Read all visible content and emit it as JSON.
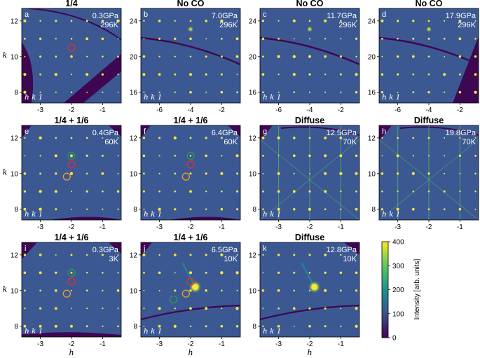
{
  "chart_data": [
    {
      "type": "heatmap",
      "panel": "a",
      "title": "1/4",
      "pressure": "0.3GPa",
      "temperature": "296K",
      "plane": "h k 1",
      "xlabel": "",
      "ylabel": "k",
      "xlim": [
        -3.6,
        -0.4
      ],
      "ylim": [
        7.4,
        12.7
      ],
      "xticks": [
        "-3",
        "-2",
        "-1"
      ],
      "yticks": [
        "8",
        "10",
        "12"
      ],
      "circles": [
        {
          "h": -2,
          "k": 10.5,
          "color": "#e03030"
        }
      ]
    },
    {
      "type": "heatmap",
      "panel": "b",
      "title": "No CO",
      "pressure": "7.0GPa",
      "temperature": "296K",
      "plane": "h k 1",
      "xlabel": "",
      "ylabel": "",
      "xlim": [
        -7.2,
        -0.8
      ],
      "ylim": [
        14.8,
        25.4
      ],
      "xticks": [
        "-6",
        "-4",
        "-2"
      ],
      "yticks": [
        "16",
        "20",
        "24"
      ],
      "circles": []
    },
    {
      "type": "heatmap",
      "panel": "c",
      "title": "No CO",
      "pressure": "11.7GPa",
      "temperature": "296K",
      "plane": "h k 1",
      "xlabel": "",
      "ylabel": "",
      "xlim": [
        -7.2,
        -0.8
      ],
      "ylim": [
        14.8,
        25.4
      ],
      "xticks": [
        "-6",
        "-4",
        "-2"
      ],
      "yticks": [
        "16",
        "20",
        "24"
      ],
      "circles": []
    },
    {
      "type": "heatmap",
      "panel": "d",
      "title": "No CO",
      "pressure": "17.9GPa",
      "temperature": "296K",
      "plane": "h k 1",
      "xlabel": "",
      "ylabel": "",
      "xlim": [
        -7.2,
        -0.8
      ],
      "ylim": [
        14.8,
        25.4
      ],
      "xticks": [
        "-6",
        "-4",
        "-2"
      ],
      "yticks": [
        "16",
        "20",
        "24"
      ],
      "circles": []
    },
    {
      "type": "heatmap",
      "panel": "e",
      "title": "1/4 + 1/6",
      "pressure": "0.4GPa",
      "temperature": "60K",
      "plane": "h k 1",
      "xlabel": "",
      "ylabel": "k",
      "xlim": [
        -3.6,
        -0.4
      ],
      "ylim": [
        7.4,
        12.7
      ],
      "xticks": [
        "-3",
        "-2",
        "-1"
      ],
      "yticks": [
        "8",
        "10",
        "12"
      ],
      "circles": [
        {
          "h": -2,
          "k": 11.0,
          "color": "#2a9a50"
        },
        {
          "h": -2,
          "k": 10.5,
          "color": "#e03030"
        },
        {
          "h": -2.15,
          "k": 9.83,
          "color": "#f0a020"
        }
      ]
    },
    {
      "type": "heatmap",
      "panel": "f",
      "title": "1/4 + 1/6",
      "pressure": "6.4GPa",
      "temperature": "60K",
      "plane": "h k 1",
      "xlabel": "",
      "ylabel": "",
      "xlim": [
        -3.6,
        -0.4
      ],
      "ylim": [
        7.4,
        12.7
      ],
      "xticks": [
        "-3",
        "-2",
        "-1"
      ],
      "yticks": [
        "8",
        "10",
        "12"
      ],
      "circles": [
        {
          "h": -2,
          "k": 11.0,
          "color": "#2a9a50"
        },
        {
          "h": -2,
          "k": 10.5,
          "color": "#e03030"
        },
        {
          "h": -2.15,
          "k": 9.83,
          "color": "#f0a020"
        }
      ]
    },
    {
      "type": "heatmap",
      "panel": "g",
      "title": "Diffuse",
      "pressure": "12.5GPa",
      "temperature": "70K",
      "plane": "h k 1",
      "xlabel": "",
      "ylabel": "",
      "xlim": [
        -3.6,
        -0.4
      ],
      "ylim": [
        7.4,
        12.7
      ],
      "xticks": [
        "-3",
        "-2",
        "-1"
      ],
      "yticks": [
        "8",
        "10",
        "12"
      ],
      "circles": []
    },
    {
      "type": "heatmap",
      "panel": "h",
      "title": "Diffuse",
      "pressure": "19.8GPa",
      "temperature": "70K",
      "plane": "h k 1",
      "xlabel": "",
      "ylabel": "",
      "xlim": [
        -3.6,
        -0.4
      ],
      "ylim": [
        7.4,
        12.7
      ],
      "xticks": [
        "-3",
        "-2",
        "-1"
      ],
      "yticks": [
        "8",
        "10",
        "12"
      ],
      "circles": []
    },
    {
      "type": "heatmap",
      "panel": "i",
      "title": "1/4 + 1/6",
      "pressure": "0.3GPa",
      "temperature": "3K",
      "plane": "h k 1",
      "xlabel": "h",
      "ylabel": "k",
      "xlim": [
        -3.6,
        -0.4
      ],
      "ylim": [
        7.4,
        12.7
      ],
      "xticks": [
        "-3",
        "-2",
        "-1"
      ],
      "yticks": [
        "8",
        "10",
        "12"
      ],
      "circles": [
        {
          "h": -2,
          "k": 11.0,
          "color": "#2a9a50"
        },
        {
          "h": -2,
          "k": 10.5,
          "color": "#e03030"
        },
        {
          "h": -2.15,
          "k": 9.83,
          "color": "#f0a020"
        }
      ]
    },
    {
      "type": "heatmap",
      "panel": "j",
      "title": "1/4 + 1/6",
      "pressure": "6.5GPa",
      "temperature": "10K",
      "plane": "h k 1",
      "xlabel": "h",
      "ylabel": "",
      "xlim": [
        -3.6,
        -0.4
      ],
      "ylim": [
        7.4,
        12.7
      ],
      "xticks": [
        "-3",
        "-2",
        "-1"
      ],
      "yticks": [
        "8",
        "10",
        "12"
      ],
      "circles": [
        {
          "h": -2.55,
          "k": 9.5,
          "color": "#2a9a50"
        },
        {
          "h": -2,
          "k": 10.5,
          "color": "#e03030"
        },
        {
          "h": -2.15,
          "k": 9.83,
          "color": "#f0a020"
        }
      ]
    },
    {
      "type": "heatmap",
      "panel": "k",
      "title": "Diffuse",
      "pressure": "12.8GPa",
      "temperature": "10K",
      "plane": "h k 1",
      "xlabel": "h",
      "ylabel": "",
      "xlim": [
        -3.6,
        -0.4
      ],
      "ylim": [
        7.4,
        12.7
      ],
      "xticks": [
        "-3",
        "-2",
        "-1"
      ],
      "yticks": [
        "8",
        "10",
        "12"
      ],
      "circles": []
    }
  ],
  "colorbar": {
    "label": "Intensity [arb. units]",
    "ticks": [
      "0",
      "100",
      "200",
      "300",
      "400"
    ],
    "min": 0,
    "max": 400,
    "colors": [
      "#440154",
      "#3b528b",
      "#21908c",
      "#5dc863",
      "#fde725"
    ]
  },
  "colors": {
    "background": "#3b5893",
    "void": "#3e0752",
    "spot": "#f6e63a",
    "frame": "#000000"
  }
}
